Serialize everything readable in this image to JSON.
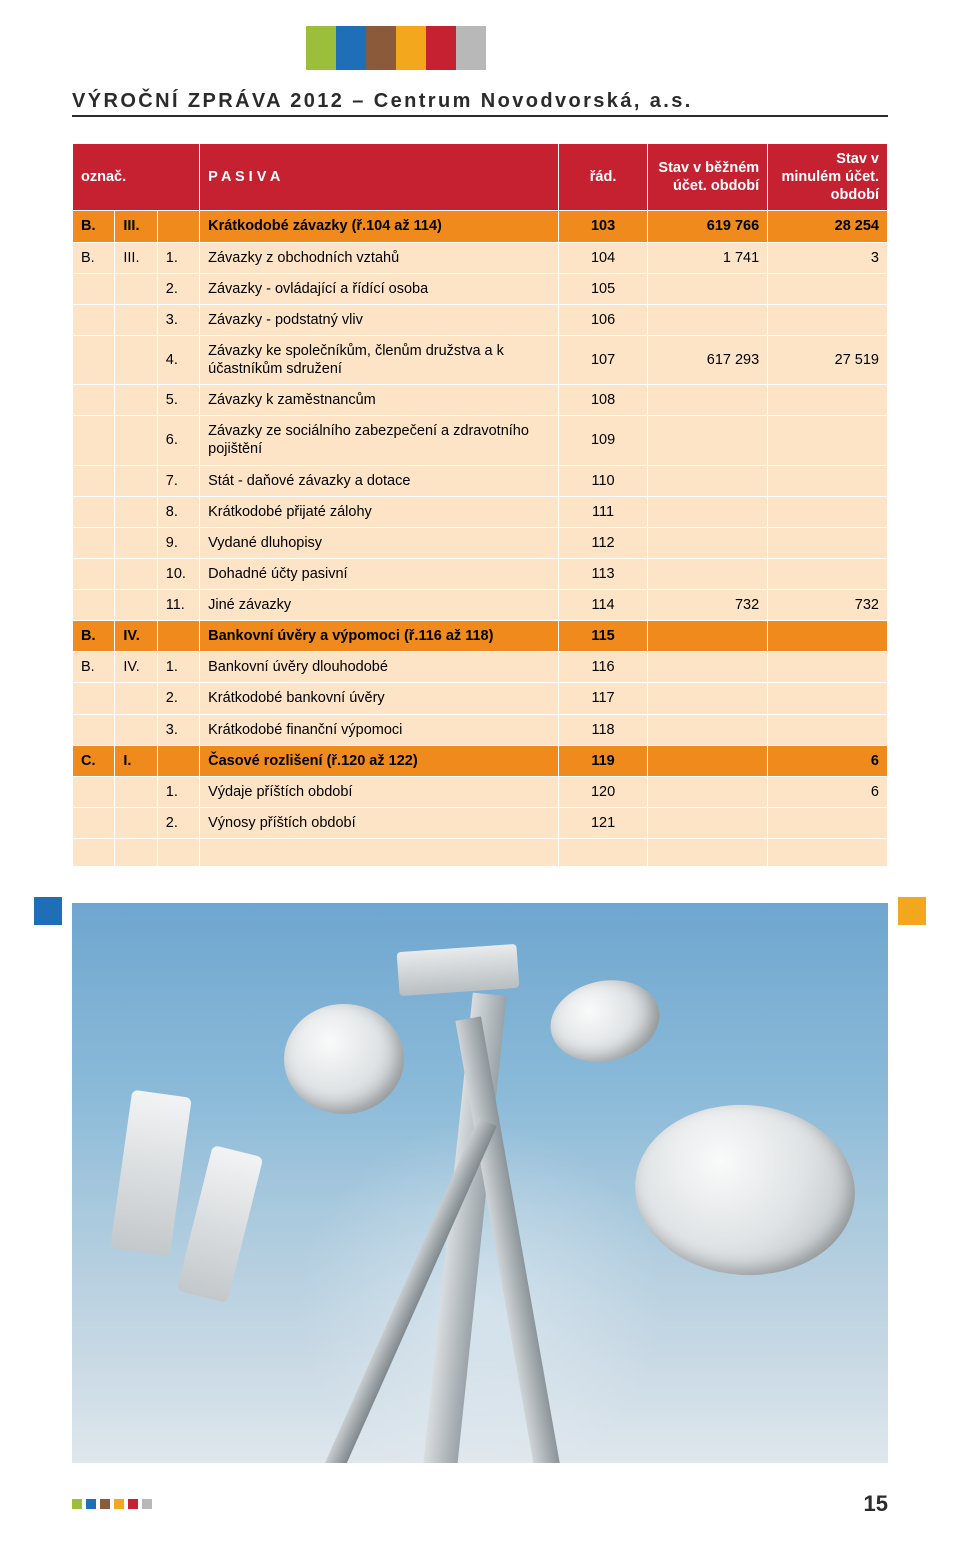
{
  "title": "VÝROČNÍ ZPRÁVA 2012 – Centrum Novodvorská, a.s.",
  "header_squares": [
    "#9cbf3b",
    "#1e6fb8",
    "#8a5a3b",
    "#f3a71d",
    "#c62131",
    "#b8b8b8"
  ],
  "table": {
    "header": {
      "col1": "označ.",
      "col2": "P A S I V A",
      "col3": "řád.",
      "col4": "Stav v běžném účet. období",
      "col5": "Stav v minulém účet. období"
    },
    "header_bg": "#c62131",
    "row_colors": {
      "highlight": "#f08a1d",
      "normal": "#fde4c6"
    },
    "rows": [
      {
        "style": "orange",
        "c": [
          "B.",
          "III.",
          "",
          "Krátkodobé závazky (ř.104 až 114)",
          "103",
          "619 766",
          "28 254"
        ]
      },
      {
        "style": "cream",
        "c": [
          "B.",
          "III.",
          "1.",
          "Závazky z obchodních vztahů",
          "104",
          "1 741",
          "3"
        ]
      },
      {
        "style": "cream",
        "c": [
          "",
          "",
          "2.",
          "Závazky - ovládající a řídící osoba",
          "105",
          "",
          ""
        ]
      },
      {
        "style": "cream",
        "c": [
          "",
          "",
          "3.",
          "Závazky - podstatný vliv",
          "106",
          "",
          ""
        ]
      },
      {
        "style": "cream",
        "c": [
          "",
          "",
          "4.",
          "Závazky ke společníkům, členům družstva a k účastníkům sdružení",
          "107",
          "617 293",
          "27 519"
        ]
      },
      {
        "style": "cream",
        "c": [
          "",
          "",
          "5.",
          "Závazky k zaměstnancům",
          "108",
          "",
          ""
        ]
      },
      {
        "style": "cream",
        "c": [
          "",
          "",
          "6.",
          "Závazky ze sociálního zabezpečení a zdravotního pojištění",
          "109",
          "",
          ""
        ]
      },
      {
        "style": "cream",
        "c": [
          "",
          "",
          "7.",
          "Stát - daňové závazky a dotace",
          "110",
          "",
          ""
        ]
      },
      {
        "style": "cream",
        "c": [
          "",
          "",
          "8.",
          "Krátkodobé přijaté zálohy",
          "111",
          "",
          ""
        ]
      },
      {
        "style": "cream",
        "c": [
          "",
          "",
          "9.",
          "Vydané dluhopisy",
          "112",
          "",
          ""
        ]
      },
      {
        "style": "cream",
        "c": [
          "",
          "",
          "10.",
          "Dohadné účty pasivní",
          "113",
          "",
          ""
        ]
      },
      {
        "style": "cream",
        "c": [
          "",
          "",
          "11.",
          "Jiné závazky",
          "114",
          "732",
          "732"
        ]
      },
      {
        "style": "orange",
        "c": [
          "B.",
          "IV.",
          "",
          "Bankovní úvěry a výpomoci (ř.116 až 118)",
          "115",
          "",
          ""
        ]
      },
      {
        "style": "cream",
        "c": [
          "B.",
          "IV.",
          "1.",
          "Bankovní úvěry dlouhodobé",
          "116",
          "",
          ""
        ]
      },
      {
        "style": "cream",
        "c": [
          "",
          "",
          "2.",
          "Krátkodobé bankovní úvěry",
          "117",
          "",
          ""
        ]
      },
      {
        "style": "cream",
        "c": [
          "",
          "",
          "3.",
          "Krátkodobé finanční výpomoci",
          "118",
          "",
          ""
        ]
      },
      {
        "style": "orange",
        "c": [
          "C.",
          "I.",
          "",
          "Časové rozlišení (ř.120 až 122)",
          "119",
          "",
          "6"
        ]
      },
      {
        "style": "cream",
        "c": [
          "",
          "",
          "1.",
          "Výdaje příštích období",
          "120",
          "",
          "6"
        ]
      },
      {
        "style": "cream",
        "c": [
          "",
          "",
          "2.",
          "Výnosy příštích období",
          "121",
          "",
          ""
        ]
      },
      {
        "style": "blank",
        "c": [
          "",
          "",
          "",
          "",
          "",
          "",
          ""
        ]
      }
    ]
  },
  "decor": {
    "side_left": "#1e6fb8",
    "side_right": "#f3a71d"
  },
  "footer_dots": [
    "#9cbf3b",
    "#1e6fb8",
    "#8a5a3b",
    "#f3a71d",
    "#c62131",
    "#b8b8b8"
  ],
  "page_number": "15"
}
